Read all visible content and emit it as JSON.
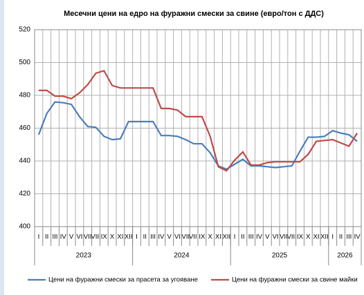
{
  "chart_data": {
    "type": "line",
    "title": "Месечни цени на едро на фуражни смески за свине (евро/тон с ДДС)",
    "category_groups": [
      {
        "name": "2023",
        "categories": [
          "I",
          "II",
          "III",
          "IV",
          "V",
          "VI",
          "VII",
          "VIII",
          "IX",
          "X",
          "XI",
          "XII"
        ]
      },
      {
        "name": "2024",
        "categories": [
          "I",
          "II",
          "III",
          "IV",
          "V",
          "VI",
          "VII",
          "VIII",
          "IX",
          "X",
          "XI",
          "XII"
        ]
      },
      {
        "name": "2025",
        "categories": [
          "I",
          "II",
          "III",
          "IV",
          "V",
          "VI",
          "VII",
          "VIII",
          "IX",
          "X",
          "XI",
          "XII"
        ]
      },
      {
        "name": "2026",
        "categories": [
          "I",
          "II",
          "III",
          "IV"
        ]
      }
    ],
    "series": [
      {
        "name": "Цени на фуражни смески за прасета за угояване",
        "color": "#4a7ebb",
        "values": [
          456,
          469,
          476,
          475.5,
          474.5,
          467,
          461,
          460.5,
          455,
          453,
          453.5,
          464,
          464,
          464,
          464,
          455.5,
          455.5,
          455,
          453,
          450.5,
          450.5,
          445,
          437,
          435,
          438,
          441,
          437,
          437,
          436.5,
          436,
          436.5,
          437,
          446,
          454.5,
          454.5,
          455,
          458.5,
          457,
          456,
          452
        ]
      },
      {
        "name": "Цени на фуражни смески за свине майки",
        "color": "#be4b48",
        "values": [
          483,
          483,
          479.5,
          479.5,
          478,
          481.5,
          486.5,
          493.5,
          495,
          486,
          484.5,
          484.5,
          484.5,
          484.5,
          484.5,
          472,
          472,
          471,
          467,
          467,
          467,
          455,
          436.5,
          434,
          440.5,
          445.5,
          437.5,
          437.5,
          439,
          439.5,
          439.5,
          439.5,
          439.5,
          444,
          452,
          452.5,
          453,
          451,
          449,
          457
        ]
      }
    ],
    "ylim": [
      400,
      520
    ],
    "yticks": [
      400,
      420,
      440,
      460,
      480,
      500,
      520
    ],
    "grid": true,
    "legend": "bottom"
  }
}
